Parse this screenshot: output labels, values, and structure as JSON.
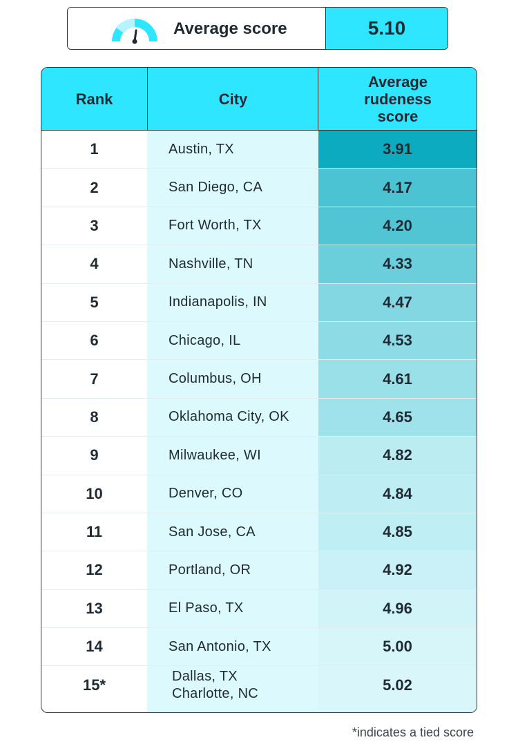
{
  "summary": {
    "label": "Average score",
    "value": "5.10",
    "icon": "gauge-icon"
  },
  "colors": {
    "header_bg": "#2ee6ff",
    "city_col_bg": "#dcf9fe",
    "score_scale_dark": "#0cabc0",
    "score_scale_light": "#d9f7fb"
  },
  "chart_data": {
    "type": "table",
    "columns": [
      "Rank",
      "City",
      "Average rudeness score"
    ],
    "rows": [
      {
        "rank": "1",
        "city": [
          "Austin, TX"
        ],
        "score": "3.91"
      },
      {
        "rank": "2",
        "city": [
          "San Diego, CA"
        ],
        "score": "4.17"
      },
      {
        "rank": "3",
        "city": [
          "Fort Worth, TX"
        ],
        "score": "4.20"
      },
      {
        "rank": "4",
        "city": [
          "Nashville, TN"
        ],
        "score": "4.33"
      },
      {
        "rank": "5",
        "city": [
          "Indianapolis, IN"
        ],
        "score": "4.47"
      },
      {
        "rank": "6",
        "city": [
          "Chicago, IL"
        ],
        "score": "4.53"
      },
      {
        "rank": "7",
        "city": [
          "Columbus, OH"
        ],
        "score": "4.61"
      },
      {
        "rank": "8",
        "city": [
          "Oklahoma City, OK"
        ],
        "score": "4.65"
      },
      {
        "rank": "9",
        "city": [
          "Milwaukee, WI"
        ],
        "score": "4.82"
      },
      {
        "rank": "10",
        "city": [
          "Denver, CO"
        ],
        "score": "4.84"
      },
      {
        "rank": "11",
        "city": [
          "San Jose, CA"
        ],
        "score": "4.85"
      },
      {
        "rank": "12",
        "city": [
          "Portland, OR"
        ],
        "score": "4.92"
      },
      {
        "rank": "13",
        "city": [
          "El Paso, TX"
        ],
        "score": "4.96"
      },
      {
        "rank": "14",
        "city": [
          "San Antonio, TX"
        ],
        "score": "5.00"
      },
      {
        "rank": "15*",
        "city": [
          "Dallas, TX",
          "Charlotte, NC"
        ],
        "score": "5.02"
      }
    ]
  },
  "footnote": "*indicates a tied score"
}
